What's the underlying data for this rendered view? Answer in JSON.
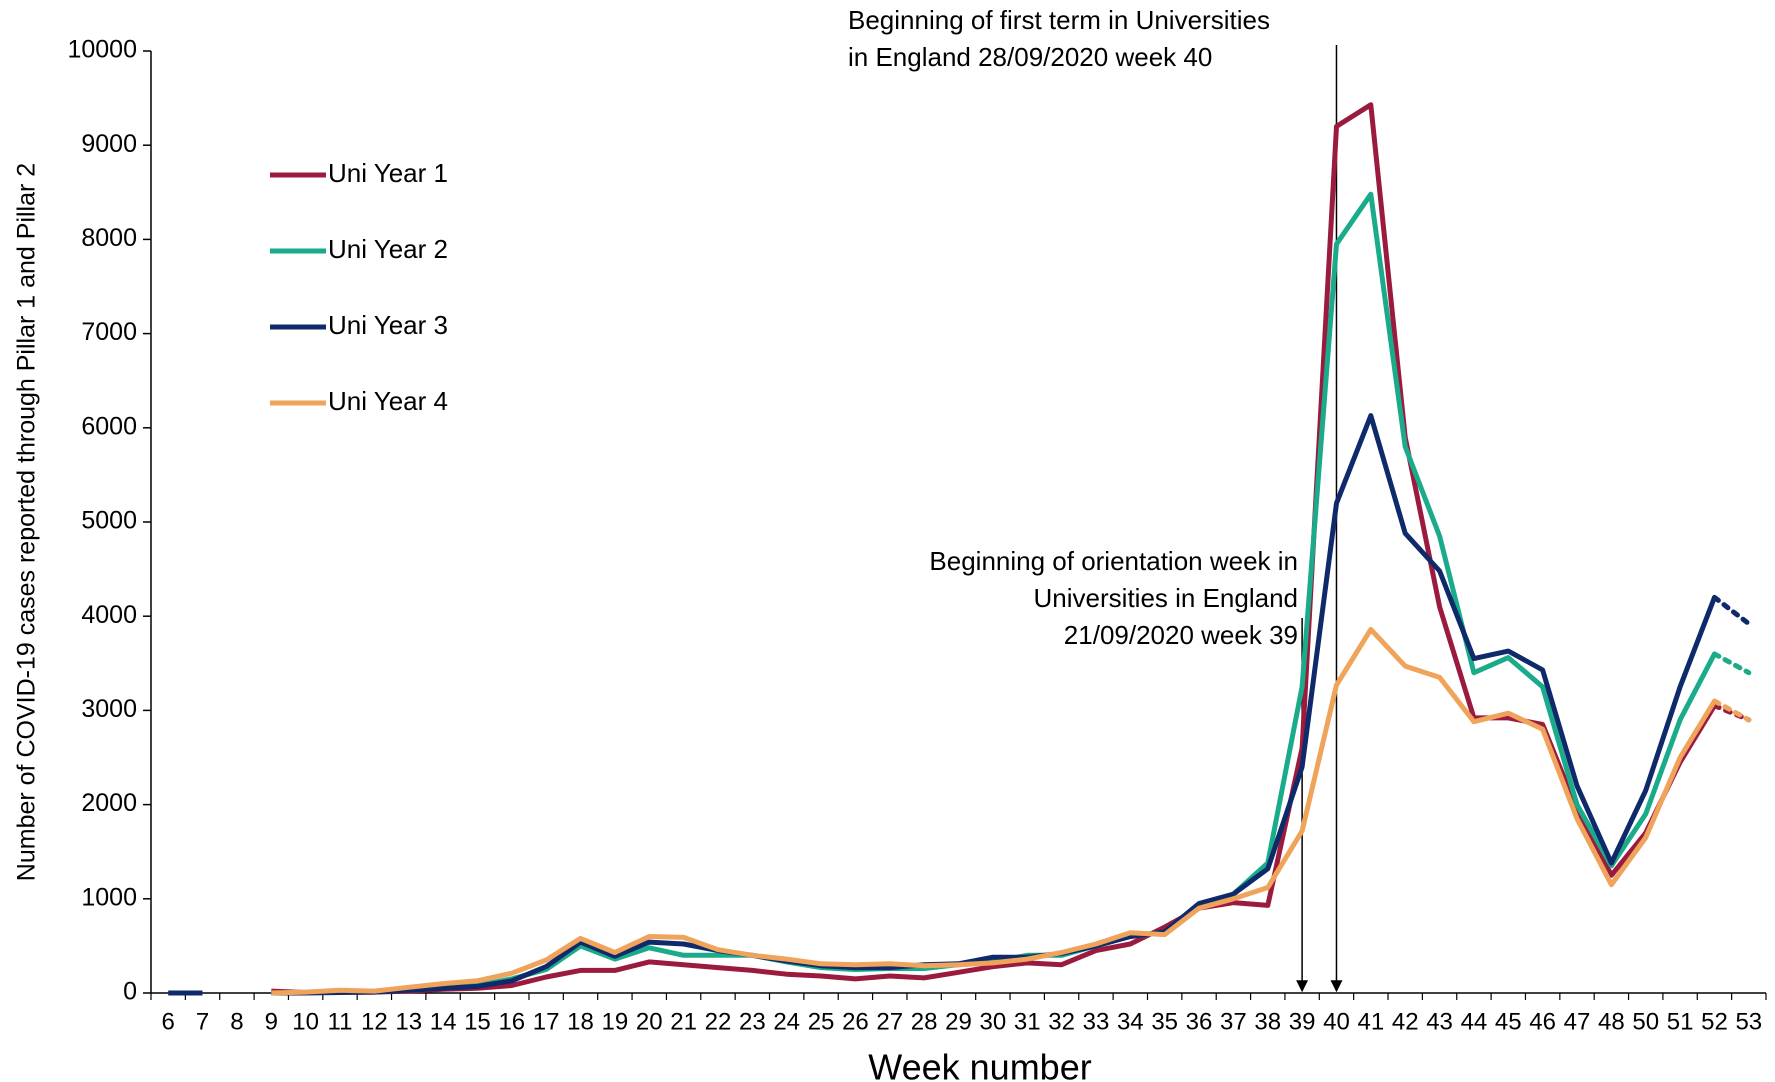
{
  "chart_data": {
    "type": "line",
    "y_axis_label": "Number of COVID-19 cases reported through Pillar 1 and Pillar 2",
    "x_axis_label": "Week number",
    "categories": [
      "6",
      "7",
      "8",
      "9",
      "10",
      "11",
      "12",
      "13",
      "14",
      "15",
      "16",
      "17",
      "18",
      "19",
      "20",
      "21",
      "22",
      "23",
      "24",
      "25",
      "26",
      "27",
      "28",
      "29",
      "30",
      "31",
      "32",
      "33",
      "34",
      "35",
      "36",
      "37",
      "38",
      "39",
      "40",
      "41",
      "42",
      "43",
      "44",
      "45",
      "46",
      "47",
      "48",
      "50",
      "51",
      "52",
      "53"
    ],
    "series": [
      {
        "name": "Uni Year 1",
        "color": "#9b1b3f",
        "values": [
          null,
          null,
          null,
          20,
          5,
          10,
          10,
          20,
          40,
          50,
          80,
          170,
          240,
          240,
          330,
          300,
          270,
          240,
          200,
          180,
          150,
          180,
          160,
          220,
          280,
          320,
          300,
          450,
          520,
          700,
          900,
          960,
          930,
          2600,
          9200,
          9430,
          5900,
          4100,
          2920,
          2920,
          2850,
          1950,
          1250,
          1700,
          2450,
          3050,
          2900
        ]
      },
      {
        "name": "Uni Year 2",
        "color": "#1aab8a",
        "values": [
          null,
          null,
          null,
          0,
          5,
          10,
          20,
          40,
          60,
          80,
          150,
          250,
          500,
          360,
          480,
          400,
          400,
          400,
          330,
          270,
          250,
          260,
          260,
          300,
          330,
          400,
          400,
          500,
          600,
          650,
          900,
          1050,
          1380,
          3250,
          7950,
          8480,
          5800,
          4850,
          3400,
          3560,
          3250,
          2000,
          1350,
          1900,
          2900,
          3600,
          3400
        ]
      },
      {
        "name": "Uni Year 3",
        "color": "#0f2a6b",
        "values": [
          0,
          0,
          null,
          0,
          0,
          5,
          10,
          30,
          50,
          70,
          130,
          280,
          540,
          390,
          540,
          520,
          450,
          400,
          340,
          290,
          270,
          270,
          300,
          310,
          380,
          380,
          420,
          500,
          600,
          650,
          950,
          1050,
          1320,
          2400,
          5200,
          6130,
          4880,
          4480,
          3550,
          3630,
          3430,
          2200,
          1380,
          2150,
          3250,
          4200,
          3920
        ]
      },
      {
        "name": "Uni Year 4",
        "color": "#f0a35a",
        "values": [
          null,
          null,
          null,
          0,
          10,
          30,
          20,
          60,
          100,
          130,
          210,
          350,
          580,
          430,
          600,
          590,
          460,
          400,
          360,
          310,
          300,
          310,
          290,
          300,
          320,
          360,
          430,
          520,
          640,
          620,
          900,
          1000,
          1120,
          1720,
          3270,
          3860,
          3470,
          3350,
          2880,
          2970,
          2800,
          1850,
          1150,
          1650,
          2500,
          3100,
          2900
        ]
      }
    ],
    "ylim": [
      0,
      10000
    ],
    "yticks": [
      0,
      1000,
      2000,
      3000,
      4000,
      5000,
      6000,
      7000,
      8000,
      9000,
      10000
    ],
    "dotted_last_segment": true,
    "annotations": [
      {
        "lines": [
          "Beginning of first term in Universities",
          "in England 28/09/2020 week 40"
        ]
      },
      {
        "lines": [
          "Beginning of orientation week in",
          "Universities in England",
          "21/09/2020 week 39"
        ]
      }
    ]
  }
}
